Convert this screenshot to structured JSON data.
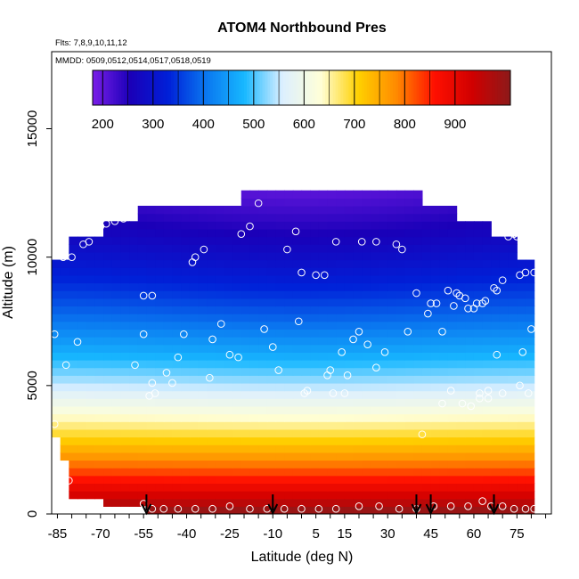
{
  "chart_data": {
    "type": "heatmap",
    "title": "ATOM4 Northbound Pres",
    "flights_label": "Flts: 7,8,9,10,11,12",
    "dates_label": "MMDD: 0509,0512,0514,0517,0518,0519",
    "xlabel": "Latitude (deg N)",
    "ylabel": "Altitude (m)",
    "xlim": [
      -87,
      87
    ],
    "ylim": [
      0,
      18000
    ],
    "x_ticks": [
      "-85",
      "-70",
      "-55",
      "-40",
      "-25",
      "-10",
      "5",
      "15",
      "30",
      "45",
      "60",
      "75"
    ],
    "x_tick_values": [
      -85,
      -70,
      -55,
      -40,
      -25,
      -10,
      5,
      15,
      30,
      45,
      60,
      75
    ],
    "y_ticks": [
      "0",
      "5000",
      "10000",
      "15000"
    ],
    "y_tick_values": [
      0,
      5000,
      10000,
      15000
    ],
    "colorbar": {
      "ticks": [
        "200",
        "300",
        "400",
        "500",
        "600",
        "700",
        "800",
        "900"
      ],
      "tick_values": [
        200,
        300,
        400,
        500,
        600,
        700,
        800,
        900
      ],
      "range": [
        180,
        1010
      ],
      "colors": [
        "#7a1ee8",
        "#1a00b8",
        "#0020d8",
        "#0a78f0",
        "#18b8ff",
        "#dcefff",
        "#ffffd8",
        "#ffd000",
        "#ff8a00",
        "#ff1000",
        "#d00000",
        "#8c1a1a"
      ]
    },
    "coverage": [
      {
        "alt": 200,
        "lat_min": -54,
        "lat_max": 80
      },
      {
        "alt": 700,
        "lat_min": -69,
        "lat_max": 80
      },
      {
        "alt": 1300,
        "lat_min": -80,
        "lat_max": 81
      },
      {
        "alt": 2000,
        "lat_min": -82,
        "lat_max": 81
      },
      {
        "alt": 3000,
        "lat_min": -85,
        "lat_max": 81
      },
      {
        "alt": 4500,
        "lat_min": -87,
        "lat_max": 82
      },
      {
        "alt": 6000,
        "lat_min": -87,
        "lat_max": 82
      },
      {
        "alt": 7500,
        "lat_min": -87,
        "lat_max": 81
      },
      {
        "alt": 9000,
        "lat_min": -86,
        "lat_max": 81
      },
      {
        "alt": 10000,
        "lat_min": -86,
        "lat_max": 80
      },
      {
        "alt": 10800,
        "lat_min": -80,
        "lat_max": 76
      },
      {
        "alt": 11400,
        "lat_min": -70,
        "lat_max": 65
      },
      {
        "alt": 11900,
        "lat_min": -58,
        "lat_max": 55
      },
      {
        "alt": 12400,
        "lat_min": -20,
        "lat_max": 42
      }
    ],
    "points": [
      [
        -86,
        7000
      ],
      [
        -82,
        5800
      ],
      [
        -78,
        6700
      ],
      [
        -83,
        10000
      ],
      [
        -80,
        10000
      ],
      [
        -76,
        10500
      ],
      [
        -74,
        10600
      ],
      [
        -70,
        11200
      ],
      [
        -68,
        11300
      ],
      [
        -65,
        11400
      ],
      [
        -62,
        11500
      ],
      [
        -58,
        5800
      ],
      [
        -55,
        7000
      ],
      [
        -55,
        8500
      ],
      [
        -52,
        8500
      ],
      [
        -53,
        4600
      ],
      [
        -51,
        4700
      ],
      [
        -52,
        5100
      ],
      [
        -47,
        5500
      ],
      [
        -45,
        5100
      ],
      [
        -43,
        6100
      ],
      [
        -41,
        7000
      ],
      [
        -38,
        9800
      ],
      [
        -37,
        10000
      ],
      [
        -34,
        10300
      ],
      [
        -32,
        5300
      ],
      [
        -31,
        6800
      ],
      [
        -28,
        7400
      ],
      [
        -25,
        6200
      ],
      [
        -22,
        6100
      ],
      [
        -21,
        10900
      ],
      [
        -18,
        11200
      ],
      [
        -15,
        12100
      ],
      [
        -13,
        7200
      ],
      [
        -10,
        6500
      ],
      [
        -8,
        5600
      ],
      [
        -5,
        10300
      ],
      [
        -2,
        11000
      ],
      [
        -1,
        7500
      ],
      [
        0,
        9400
      ],
      [
        1,
        4700
      ],
      [
        2,
        4800
      ],
      [
        5,
        9300
      ],
      [
        8,
        9300
      ],
      [
        9,
        5400
      ],
      [
        10,
        5600
      ],
      [
        11,
        4700
      ],
      [
        12,
        10600
      ],
      [
        14,
        6300
      ],
      [
        15,
        4700
      ],
      [
        16,
        5400
      ],
      [
        18,
        6800
      ],
      [
        20,
        7100
      ],
      [
        21,
        10600
      ],
      [
        23,
        6600
      ],
      [
        26,
        5700
      ],
      [
        26,
        10600
      ],
      [
        29,
        6300
      ],
      [
        33,
        10500
      ],
      [
        35,
        10300
      ],
      [
        37,
        7100
      ],
      [
        40,
        8600
      ],
      [
        42,
        3100
      ],
      [
        44,
        7800
      ],
      [
        45,
        8200
      ],
      [
        47,
        8200
      ],
      [
        49,
        4300
      ],
      [
        49,
        7100
      ],
      [
        51,
        8700
      ],
      [
        52,
        4800
      ],
      [
        53,
        8100
      ],
      [
        54,
        8600
      ],
      [
        55,
        8500
      ],
      [
        56,
        4300
      ],
      [
        57,
        8400
      ],
      [
        58,
        8000
      ],
      [
        59,
        4200
      ],
      [
        60,
        8000
      ],
      [
        61,
        8200
      ],
      [
        62,
        4500
      ],
      [
        62,
        4700
      ],
      [
        63,
        8200
      ],
      [
        64,
        8300
      ],
      [
        65,
        4800
      ],
      [
        65,
        4500
      ],
      [
        67,
        8800
      ],
      [
        68,
        8700
      ],
      [
        68,
        6200
      ],
      [
        70,
        9100
      ],
      [
        70,
        4700
      ],
      [
        72,
        10800
      ],
      [
        74,
        10900
      ],
      [
        75,
        10800
      ],
      [
        76,
        9300
      ],
      [
        76,
        5000
      ],
      [
        77,
        6300
      ],
      [
        78,
        9400
      ],
      [
        79,
        4700
      ],
      [
        80,
        7200
      ],
      [
        81,
        9400
      ],
      [
        -86,
        3500
      ],
      [
        -81,
        1300
      ],
      [
        -55,
        400
      ],
      [
        -52,
        200
      ],
      [
        -48,
        200
      ],
      [
        -43,
        200
      ],
      [
        -37,
        200
      ],
      [
        -31,
        200
      ],
      [
        -25,
        300
      ],
      [
        -18,
        200
      ],
      [
        -12,
        200
      ],
      [
        -6,
        200
      ],
      [
        0,
        200
      ],
      [
        6,
        200
      ],
      [
        12,
        200
      ],
      [
        20,
        300
      ],
      [
        27,
        300
      ],
      [
        34,
        200
      ],
      [
        40,
        200
      ],
      [
        46,
        300
      ],
      [
        52,
        300
      ],
      [
        58,
        300
      ],
      [
        63,
        500
      ],
      [
        66,
        300
      ],
      [
        70,
        300
      ],
      [
        74,
        200
      ],
      [
        78,
        200
      ],
      [
        81,
        200
      ]
    ],
    "arrows": [
      -54,
      -10,
      40,
      45,
      67
    ]
  }
}
